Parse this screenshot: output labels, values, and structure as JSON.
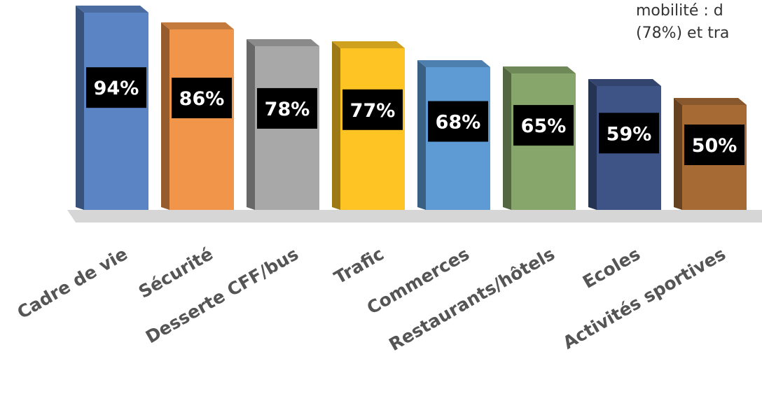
{
  "snippet": {
    "line1": "mobilité : d",
    "line2": "(78%) et tra"
  },
  "chart_data": {
    "type": "bar",
    "title": "",
    "xlabel": "",
    "ylabel": "",
    "ylim": [
      0,
      100
    ],
    "grid": false,
    "legend": "none",
    "categories": [
      "Cadre de vie",
      "Sécurité",
      "Desserte CFF/bus",
      "Trafic",
      "Commerces",
      "Restaurants/hôtels",
      "Ecoles",
      "Activités sportives"
    ],
    "values": [
      94,
      86,
      78,
      77,
      68,
      65,
      59,
      50
    ],
    "value_labels": [
      "94%",
      "86%",
      "78%",
      "77%",
      "68%",
      "65%",
      "59%",
      "50%"
    ],
    "colors": [
      "#5B84C4",
      "#F0954A",
      "#A8A8A8",
      "#FDC424",
      "#5E9BD5",
      "#86A66B",
      "#3E5487",
      "#A66A35"
    ]
  }
}
